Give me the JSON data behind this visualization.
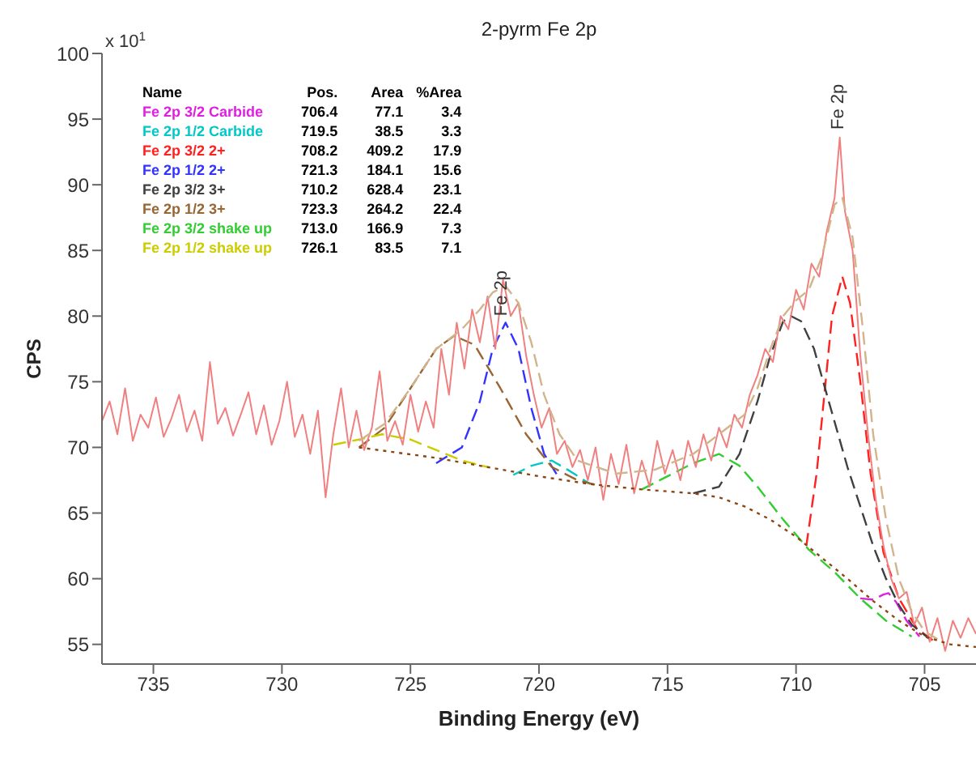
{
  "chart_data": {
    "type": "line",
    "title": "2-pyrm Fe 2p",
    "xlabel": "Binding Energy (eV)",
    "ylabel": "CPS",
    "xlim": [
      737,
      703
    ],
    "xticks": [
      735,
      730,
      725,
      720,
      715,
      710,
      705
    ],
    "ylim": [
      53.5,
      100
    ],
    "yticks": [
      55,
      60,
      65,
      70,
      75,
      80,
      85,
      90,
      95,
      100
    ],
    "legend": "top left",
    "marker": "none",
    "annotations": [
      "x 10$^{1}$",
      "Name",
      "Pos.",
      "Area",
      "%Area",
      "706.4",
      "77.1",
      "3.4",
      "719.5",
      "38.5",
      "3.3",
      "708.2",
      "409.2",
      "17.9",
      "721.3",
      "184.1",
      "15.6",
      "710.2",
      "628.4",
      "23.1",
      "723.3",
      "264.2",
      "22.4",
      "713.0",
      "166.9",
      "7.3",
      "726.1",
      "83.5",
      "7.1",
      {
        "text": "Fe 2p",
        "x": 721.5,
        "y": 80
      },
      {
        "text": "Fe 2p",
        "x": 708.4,
        "y": 94.2
      }
    ],
    "series": [
      {
        "name": "Fe 2p 3/2 Carbide",
        "color": "#e020e0",
        "line_style": "dashed",
        "x": [
          707.5,
          707,
          706.6,
          706.4,
          706.1,
          705.7,
          705.2
        ],
        "values": [
          58.5,
          58.4,
          58.8,
          58.9,
          58.2,
          56.8,
          55.6
        ]
      },
      {
        "name": "Fe 2p 1/2 Carbide",
        "color": "#00c8c8",
        "line_style": "dashed",
        "x": [
          721,
          720.3,
          719.5,
          718.8,
          718
        ],
        "values": [
          67.9,
          68.6,
          69,
          68.2,
          67.2
        ]
      },
      {
        "name": "Fe 2p 3/2 2+",
        "color": "#ff2020",
        "line_style": "dashed",
        "x": [
          709.6,
          709.2,
          708.9,
          708.6,
          708.2,
          707.9,
          707.5,
          707.1,
          706.6,
          706,
          705.3,
          704.6
        ],
        "values": [
          62.5,
          68,
          74,
          80,
          83,
          81,
          75,
          68,
          62,
          58.5,
          56.2,
          55.2
        ]
      },
      {
        "name": "Fe 2p 1/2 2+",
        "color": "#3333ff",
        "line_style": "dashed",
        "x": [
          724,
          723,
          722.3,
          721.8,
          721.3,
          720.8,
          720.3,
          719.8,
          719.2
        ],
        "values": [
          68.8,
          70,
          73.5,
          77.5,
          79.5,
          77.5,
          73,
          69.5,
          67.6
        ]
      },
      {
        "name": "Fe 2p 3/2 3+",
        "color": "#404040",
        "line_style": "dashed",
        "x": [
          714,
          713,
          712.2,
          711.5,
          711,
          710.5,
          710.2,
          709.8,
          709.3,
          708.8,
          708,
          707.5,
          707,
          706.5,
          706,
          705.5,
          704.8
        ],
        "values": [
          66.5,
          67,
          69.5,
          73.5,
          77,
          79.6,
          80,
          79.6,
          77.5,
          74,
          68.5,
          65.5,
          62.5,
          60,
          58,
          56.5,
          55.4
        ]
      },
      {
        "name": "Fe 2p 1/2 3+",
        "color": "#996633",
        "line_style": "dashed",
        "x": [
          727,
          726,
          725,
          724,
          723.3,
          722.5,
          721.5,
          720.5,
          719.5,
          718.5,
          717.5
        ],
        "values": [
          70,
          71.5,
          74.5,
          77.5,
          78.5,
          77.8,
          74.5,
          71,
          68.5,
          67.5,
          67
        ]
      },
      {
        "name": "Fe 2p 3/2 shake up",
        "color": "#33cc33",
        "line_style": "dashed",
        "x": [
          716,
          715,
          714,
          713,
          712.2,
          711.5,
          710.5,
          709.5,
          708.5,
          707.5,
          706.5,
          705.5
        ],
        "values": [
          66.8,
          67.8,
          68.8,
          69.5,
          68.6,
          67,
          64.5,
          62.2,
          60.5,
          58.5,
          56.8,
          55.6
        ]
      },
      {
        "name": "Fe 2p 1/2 shake up",
        "color": "#cccc00",
        "line_style": "dashed",
        "x": [
          728,
          727,
          726.1,
          725,
          724,
          723,
          722
        ],
        "values": [
          70.2,
          70.6,
          71,
          70.6,
          69.8,
          69,
          68.5
        ]
      },
      {
        "color": "#f08080",
        "line_style": "solid",
        "x": [
          737,
          736.7,
          736.4,
          736.1,
          735.8,
          735.5,
          735.2,
          734.9,
          734.6,
          734.3,
          734,
          733.7,
          733.4,
          733.1,
          732.8,
          732.5,
          732.2,
          731.9,
          731.6,
          731.3,
          731,
          730.7,
          730.4,
          730.1,
          729.8,
          729.5,
          729.2,
          728.9,
          728.6,
          728.3,
          728,
          727.7,
          727.4,
          727.1,
          726.8,
          726.5,
          726.2,
          725.9,
          725.6,
          725.3,
          725,
          724.7,
          724.4,
          724.1,
          723.8,
          723.5,
          723.2,
          722.9,
          722.6,
          722.3,
          722,
          721.7,
          721.4,
          721.1,
          720.8,
          720.5,
          720.2,
          719.9,
          719.6,
          719.3,
          719,
          718.7,
          718.4,
          718.1,
          717.8,
          717.5,
          717.2,
          716.9,
          716.6,
          716.3,
          716,
          715.7,
          715.4,
          715.1,
          714.8,
          714.5,
          714.2,
          713.9,
          713.6,
          713.3,
          713,
          712.7,
          712.4,
          712.1,
          711.8,
          711.5,
          711.2,
          710.9,
          710.6,
          710.3,
          710,
          709.7,
          709.4,
          709.1,
          708.8,
          708.5,
          708.3,
          708.1,
          707.8,
          707.5,
          707.2,
          706.9,
          706.6,
          706.3,
          706,
          705.7,
          705.4,
          705.1,
          704.8,
          704.5,
          704.2,
          703.9,
          703.6,
          703.3,
          703
        ],
        "values": [
          72,
          73.5,
          71,
          74.5,
          70.5,
          72.5,
          71.5,
          73.8,
          70.8,
          72.2,
          74,
          71.2,
          72.8,
          70.5,
          76.5,
          71.8,
          73,
          70.9,
          72.5,
          74.2,
          71,
          73.2,
          70.2,
          72,
          75,
          70.8,
          72.5,
          69.5,
          72.8,
          66.2,
          71,
          74.5,
          70,
          72.8,
          69.8,
          71.5,
          75.8,
          70.5,
          72,
          70.2,
          74,
          71.2,
          73.5,
          71.5,
          77.5,
          74,
          79.5,
          76,
          80.5,
          78,
          81.5,
          77.5,
          82.8,
          80,
          81,
          77,
          74,
          71.5,
          73,
          69.5,
          70.5,
          68.5,
          69.8,
          67.5,
          70,
          66,
          69.5,
          67.2,
          70.2,
          66.5,
          69,
          67,
          70.5,
          68,
          69.8,
          67.5,
          70.5,
          68.5,
          71,
          69,
          71.5,
          70,
          72.5,
          71.5,
          74,
          75.5,
          77.5,
          76.5,
          80,
          79,
          82,
          80.5,
          84,
          83,
          86.5,
          89,
          93.6,
          88,
          85,
          77,
          71,
          66,
          62.5,
          60,
          58.5,
          59,
          56.5,
          57.8,
          55.2,
          57,
          54.5,
          56.8,
          55.5,
          57,
          55.8
        ]
      },
      {
        "color": "#d2b48c",
        "line_style": "dashed",
        "x": [
          727,
          726,
          725,
          724,
          723,
          722.3,
          721.8,
          721.3,
          720.8,
          720.3,
          719.8,
          719.2,
          718.5,
          717,
          715.5,
          714,
          713,
          712,
          711.5,
          711,
          710.5,
          710,
          709.5,
          709,
          708.5,
          708.2,
          707.8,
          707.4,
          707,
          706.5,
          706,
          705.5,
          705,
          704.5
        ],
        "values": [
          70.5,
          71.8,
          74.5,
          77.5,
          79,
          80.5,
          81.8,
          82.3,
          81,
          78,
          74,
          71,
          69,
          68,
          68.3,
          69.5,
          71,
          72.5,
          74.5,
          77.5,
          80,
          81.2,
          82,
          84.5,
          88.5,
          89,
          86,
          79,
          71,
          64.5,
          60,
          57.5,
          56,
          55.4
        ]
      },
      {
        "color": "#8b4513",
        "line_style": "dotted",
        "x": [
          727,
          724,
          722,
          720,
          718,
          716,
          714,
          713,
          712,
          711,
          710,
          709,
          708,
          707,
          706,
          705,
          704,
          703
        ],
        "values": [
          70,
          69.2,
          68.5,
          67.8,
          67.2,
          66.8,
          66.5,
          66.2,
          65.5,
          64.5,
          63.2,
          61.6,
          60,
          58.3,
          56.8,
          55.6,
          55,
          54.8
        ]
      }
    ]
  }
}
